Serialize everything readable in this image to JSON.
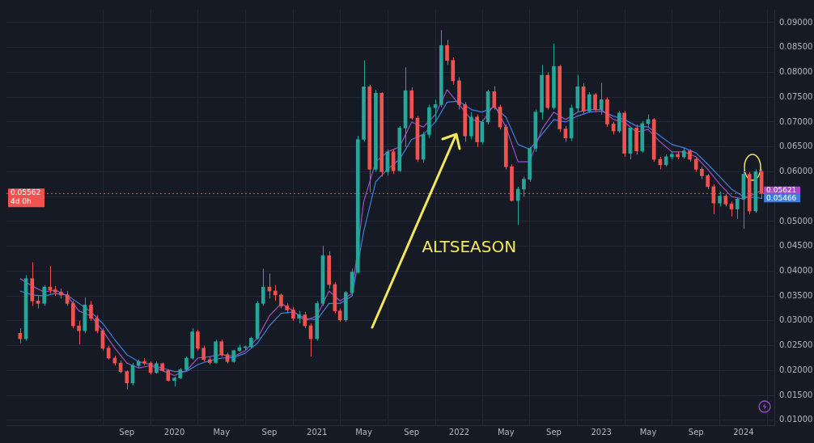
{
  "chart_data": {
    "type": "candlestick",
    "x": [
      "2018-12-01",
      "2018-12-16",
      "2019-01-01",
      "2019-01-16",
      "2019-02-01",
      "2019-02-16",
      "2019-03-01",
      "2019-03-16",
      "2019-04-01",
      "2019-04-16",
      "2019-05-01",
      "2019-05-16",
      "2019-06-01",
      "2019-06-16",
      "2019-07-01",
      "2019-07-16",
      "2019-08-01",
      "2019-08-16",
      "2019-09-01",
      "2019-09-16",
      "2019-10-01",
      "2019-10-16",
      "2019-11-01",
      "2019-11-16",
      "2019-12-01",
      "2019-12-16",
      "2020-01-01",
      "2020-01-16",
      "2020-02-01",
      "2020-02-16",
      "2020-03-01",
      "2020-03-16",
      "2020-04-01",
      "2020-04-16",
      "2020-05-01",
      "2020-05-16",
      "2020-06-01",
      "2020-06-16",
      "2020-07-01",
      "2020-07-16",
      "2020-08-01",
      "2020-08-16",
      "2020-09-01",
      "2020-09-16",
      "2020-10-01",
      "2020-10-16",
      "2020-11-01",
      "2020-11-16",
      "2020-12-01",
      "2020-12-16",
      "2021-01-01",
      "2021-01-16",
      "2021-02-01",
      "2021-02-16",
      "2021-03-01",
      "2021-03-16",
      "2021-04-01",
      "2021-04-16",
      "2021-05-01",
      "2021-05-16",
      "2021-06-01",
      "2021-06-16",
      "2021-07-01",
      "2021-07-16",
      "2021-08-01",
      "2021-08-16",
      "2021-09-01",
      "2021-09-16",
      "2021-10-01",
      "2021-10-16",
      "2021-11-01",
      "2021-11-16",
      "2021-12-01",
      "2021-12-16",
      "2022-01-01",
      "2022-01-16",
      "2022-02-01",
      "2022-02-16",
      "2022-03-01",
      "2022-03-16",
      "2022-04-01",
      "2022-04-16",
      "2022-05-01",
      "2022-05-16",
      "2022-06-01",
      "2022-06-16",
      "2022-07-01",
      "2022-07-16",
      "2022-08-01",
      "2022-08-16",
      "2022-09-01",
      "2022-09-16",
      "2022-10-01",
      "2022-10-16",
      "2022-11-01",
      "2022-11-16",
      "2022-12-01",
      "2022-12-16",
      "2023-01-01",
      "2023-01-16",
      "2023-02-01",
      "2023-02-16",
      "2023-03-01",
      "2023-03-16",
      "2023-04-01",
      "2023-04-16",
      "2023-05-01",
      "2023-05-16",
      "2023-06-01",
      "2023-06-16",
      "2023-07-01",
      "2023-07-16",
      "2023-08-01",
      "2023-08-16",
      "2023-09-01",
      "2023-09-16",
      "2023-10-01",
      "2023-10-16",
      "2023-11-01",
      "2023-11-16",
      "2023-12-01",
      "2023-12-16",
      "2024-01-01",
      "2024-01-16",
      "2024-02-01",
      "2024-02-16"
    ],
    "ohlc": [
      [
        0.0275,
        0.0285,
        0.0255,
        0.0264
      ],
      [
        0.0264,
        0.0392,
        0.026,
        0.0385
      ],
      [
        0.0385,
        0.0418,
        0.033,
        0.034
      ],
      [
        0.034,
        0.035,
        0.0325,
        0.0335
      ],
      [
        0.0335,
        0.0372,
        0.033,
        0.0368
      ],
      [
        0.0368,
        0.041,
        0.0355,
        0.0362
      ],
      [
        0.0362,
        0.037,
        0.035,
        0.0358
      ],
      [
        0.0358,
        0.0365,
        0.0345,
        0.0352
      ],
      [
        0.0352,
        0.036,
        0.033,
        0.0335
      ],
      [
        0.0335,
        0.034,
        0.0285,
        0.029
      ],
      [
        0.029,
        0.03,
        0.0252,
        0.028
      ],
      [
        0.028,
        0.0347,
        0.0275,
        0.0332
      ],
      [
        0.0332,
        0.034,
        0.03,
        0.0305
      ],
      [
        0.0305,
        0.0312,
        0.0275,
        0.028
      ],
      [
        0.028,
        0.0285,
        0.024,
        0.0245
      ],
      [
        0.0245,
        0.025,
        0.0222,
        0.0225
      ],
      [
        0.0225,
        0.023,
        0.021,
        0.0215
      ],
      [
        0.0215,
        0.022,
        0.0195,
        0.0198
      ],
      [
        0.0198,
        0.02,
        0.0162,
        0.0175
      ],
      [
        0.0175,
        0.0215,
        0.017,
        0.021
      ],
      [
        0.021,
        0.0222,
        0.0205,
        0.0218
      ],
      [
        0.0218,
        0.0225,
        0.021,
        0.0215
      ],
      [
        0.0215,
        0.0218,
        0.0192,
        0.0196
      ],
      [
        0.0196,
        0.0218,
        0.0194,
        0.0214
      ],
      [
        0.0214,
        0.0216,
        0.0198,
        0.02
      ],
      [
        0.02,
        0.0202,
        0.0178,
        0.018
      ],
      [
        0.018,
        0.0188,
        0.0168,
        0.0185
      ],
      [
        0.0185,
        0.0205,
        0.0183,
        0.0202
      ],
      [
        0.0202,
        0.0228,
        0.02,
        0.0225
      ],
      [
        0.0225,
        0.0285,
        0.0222,
        0.0278
      ],
      [
        0.0278,
        0.0282,
        0.024,
        0.0245
      ],
      [
        0.0245,
        0.025,
        0.0218,
        0.0222
      ],
      [
        0.0222,
        0.0228,
        0.0212,
        0.0216
      ],
      [
        0.0216,
        0.0262,
        0.0214,
        0.0258
      ],
      [
        0.0258,
        0.0262,
        0.0228,
        0.0232
      ],
      [
        0.0232,
        0.0236,
        0.0214,
        0.0218
      ],
      [
        0.0218,
        0.0242,
        0.0216,
        0.024
      ],
      [
        0.024,
        0.0252,
        0.0238,
        0.0246
      ],
      [
        0.0246,
        0.025,
        0.024,
        0.0248
      ],
      [
        0.0248,
        0.0268,
        0.0246,
        0.0265
      ],
      [
        0.0265,
        0.034,
        0.0262,
        0.0335
      ],
      [
        0.0335,
        0.0405,
        0.033,
        0.0368
      ],
      [
        0.0368,
        0.0395,
        0.0345,
        0.036
      ],
      [
        0.036,
        0.0372,
        0.034,
        0.0352
      ],
      [
        0.0352,
        0.0355,
        0.0325,
        0.033
      ],
      [
        0.033,
        0.0335,
        0.0315,
        0.0322
      ],
      [
        0.0322,
        0.0328,
        0.03,
        0.0305
      ],
      [
        0.0305,
        0.032,
        0.0295,
        0.0312
      ],
      [
        0.0312,
        0.0318,
        0.0285,
        0.029
      ],
      [
        0.029,
        0.0295,
        0.0228,
        0.0264
      ],
      [
        0.0264,
        0.034,
        0.026,
        0.0335
      ],
      [
        0.0335,
        0.0451,
        0.033,
        0.0431
      ],
      [
        0.0431,
        0.044,
        0.0365,
        0.0373
      ],
      [
        0.0373,
        0.0378,
        0.0315,
        0.032
      ],
      [
        0.032,
        0.0325,
        0.0298,
        0.0302
      ],
      [
        0.0302,
        0.036,
        0.0298,
        0.0357
      ],
      [
        0.0357,
        0.0405,
        0.035,
        0.0398
      ],
      [
        0.0398,
        0.0672,
        0.0395,
        0.0665
      ],
      [
        0.0665,
        0.0824,
        0.066,
        0.0771
      ],
      [
        0.0771,
        0.0775,
        0.0559,
        0.0605
      ],
      [
        0.0605,
        0.0765,
        0.06,
        0.0758
      ],
      [
        0.0758,
        0.076,
        0.059,
        0.06
      ],
      [
        0.06,
        0.0645,
        0.0592,
        0.064
      ],
      [
        0.064,
        0.0645,
        0.0595,
        0.0602
      ],
      [
        0.0602,
        0.0692,
        0.06,
        0.0688
      ],
      [
        0.0688,
        0.081,
        0.065,
        0.0763
      ],
      [
        0.0763,
        0.077,
        0.0705,
        0.0708
      ],
      [
        0.0708,
        0.0712,
        0.062,
        0.0625
      ],
      [
        0.0625,
        0.068,
        0.0618,
        0.0675
      ],
      [
        0.0675,
        0.0735,
        0.0668,
        0.0729
      ],
      [
        0.0729,
        0.0745,
        0.07,
        0.0735
      ],
      [
        0.0735,
        0.0885,
        0.073,
        0.0854
      ],
      [
        0.0854,
        0.0865,
        0.0815,
        0.0824
      ],
      [
        0.0824,
        0.083,
        0.0775,
        0.0783
      ],
      [
        0.0783,
        0.079,
        0.0725,
        0.0735
      ],
      [
        0.0735,
        0.074,
        0.066,
        0.0672
      ],
      [
        0.0672,
        0.072,
        0.0665,
        0.071
      ],
      [
        0.071,
        0.0715,
        0.065,
        0.066
      ],
      [
        0.066,
        0.0705,
        0.0655,
        0.07
      ],
      [
        0.07,
        0.0765,
        0.0695,
        0.0761
      ],
      [
        0.0761,
        0.0772,
        0.0725,
        0.073
      ],
      [
        0.073,
        0.0735,
        0.0685,
        0.069
      ],
      [
        0.069,
        0.0695,
        0.0605,
        0.061
      ],
      [
        0.061,
        0.0615,
        0.054,
        0.0542
      ],
      [
        0.0542,
        0.057,
        0.0493,
        0.0565
      ],
      [
        0.0565,
        0.059,
        0.055,
        0.0585
      ],
      [
        0.0585,
        0.065,
        0.058,
        0.0647
      ],
      [
        0.0647,
        0.0725,
        0.064,
        0.072
      ],
      [
        0.072,
        0.0815,
        0.0705,
        0.0794
      ],
      [
        0.0794,
        0.08,
        0.0725,
        0.0729
      ],
      [
        0.0729,
        0.0858,
        0.0725,
        0.0812
      ],
      [
        0.0812,
        0.0815,
        0.068,
        0.0686
      ],
      [
        0.0686,
        0.0692,
        0.066,
        0.0668
      ],
      [
        0.0668,
        0.0735,
        0.0662,
        0.0728
      ],
      [
        0.0728,
        0.0795,
        0.072,
        0.0771
      ],
      [
        0.0771,
        0.0778,
        0.0715,
        0.0722
      ],
      [
        0.0722,
        0.076,
        0.0718,
        0.0755
      ],
      [
        0.0755,
        0.0758,
        0.072,
        0.0725
      ],
      [
        0.0725,
        0.0779,
        0.0715,
        0.0745
      ],
      [
        0.0745,
        0.075,
        0.069,
        0.0696
      ],
      [
        0.0696,
        0.07,
        0.0675,
        0.0682
      ],
      [
        0.0682,
        0.0722,
        0.0678,
        0.0718
      ],
      [
        0.0718,
        0.0722,
        0.063,
        0.0637
      ],
      [
        0.0637,
        0.069,
        0.0625,
        0.0688
      ],
      [
        0.0688,
        0.0695,
        0.0635,
        0.0642
      ],
      [
        0.0642,
        0.0702,
        0.0638,
        0.0697
      ],
      [
        0.0697,
        0.0715,
        0.069,
        0.0705
      ],
      [
        0.0705,
        0.0708,
        0.062,
        0.0625
      ],
      [
        0.0625,
        0.063,
        0.0605,
        0.0614
      ],
      [
        0.0614,
        0.0635,
        0.061,
        0.063
      ],
      [
        0.063,
        0.064,
        0.0625,
        0.0635
      ],
      [
        0.0635,
        0.064,
        0.0625,
        0.063
      ],
      [
        0.063,
        0.0648,
        0.0626,
        0.0642
      ],
      [
        0.0642,
        0.0645,
        0.062,
        0.0625
      ],
      [
        0.0625,
        0.0628,
        0.06,
        0.0605
      ],
      [
        0.0605,
        0.061,
        0.0585,
        0.0592
      ],
      [
        0.0592,
        0.0595,
        0.0565,
        0.057
      ],
      [
        0.057,
        0.0575,
        0.0515,
        0.0537
      ],
      [
        0.0537,
        0.056,
        0.053,
        0.0551
      ],
      [
        0.0551,
        0.0555,
        0.053,
        0.0535
      ],
      [
        0.0535,
        0.054,
        0.051,
        0.0525
      ],
      [
        0.0525,
        0.0548,
        0.0505,
        0.0545
      ],
      [
        0.0545,
        0.0608,
        0.0485,
        0.0595
      ],
      [
        0.0595,
        0.06,
        0.0515,
        0.0521
      ],
      [
        0.0521,
        0.0605,
        0.0518,
        0.06
      ],
      [
        0.06,
        0.0605,
        0.0545,
        0.05562
      ]
    ],
    "series": [
      {
        "type": "line",
        "color": "#a24cc4",
        "x": [
          "2018-12",
          "2019-01",
          "2019-02",
          "2019-03",
          "2019-04",
          "2019-05",
          "2019-06",
          "2019-07",
          "2019-08",
          "2019-09",
          "2019-10",
          "2019-11",
          "2019-12",
          "2020-01",
          "2020-02",
          "2020-03",
          "2020-04",
          "2020-05",
          "2020-06",
          "2020-07",
          "2020-08",
          "2020-09",
          "2020-10",
          "2020-11",
          "2020-12",
          "2021-01",
          "2021-02",
          "2021-03",
          "2021-04",
          "2021-05",
          "2021-06",
          "2021-07",
          "2021-08",
          "2021-09",
          "2021-10",
          "2021-11",
          "2021-12",
          "2022-01",
          "2022-02",
          "2022-03",
          "2022-04",
          "2022-05",
          "2022-06",
          "2022-07",
          "2022-08",
          "2022-09",
          "2022-10",
          "2022-11",
          "2022-12",
          "2023-01",
          "2023-02",
          "2023-03",
          "2023-04",
          "2023-05",
          "2023-06",
          "2023-07",
          "2023-08",
          "2023-09",
          "2023-10",
          "2023-11",
          "2023-12",
          "2024-01",
          "2024-02-16"
        ],
        "values": [
          0.0385,
          0.037,
          0.0358,
          0.0362,
          0.035,
          0.032,
          0.031,
          0.028,
          0.0245,
          0.0215,
          0.0205,
          0.021,
          0.02,
          0.019,
          0.02,
          0.0225,
          0.0228,
          0.0232,
          0.0228,
          0.024,
          0.0265,
          0.031,
          0.0335,
          0.032,
          0.03,
          0.031,
          0.036,
          0.034,
          0.0355,
          0.054,
          0.062,
          0.064,
          0.065,
          0.07,
          0.069,
          0.0715,
          0.0765,
          0.0735,
          0.0705,
          0.07,
          0.0735,
          0.069,
          0.062,
          0.062,
          0.0685,
          0.072,
          0.0705,
          0.072,
          0.0725,
          0.0725,
          0.0705,
          0.07,
          0.068,
          0.0685,
          0.066,
          0.064,
          0.064,
          0.063,
          0.0605,
          0.0575,
          0.055,
          0.0545,
          0.05621
        ],
        "value_labels": [
          null,
          null,
          null,
          null,
          null,
          null,
          null,
          null,
          null,
          null,
          null,
          null,
          null,
          null,
          null,
          null,
          null,
          null,
          null,
          null,
          null,
          null,
          null,
          null,
          null,
          null,
          null,
          null,
          null,
          null,
          null,
          null,
          null,
          null,
          null,
          null,
          null,
          null,
          null,
          null,
          null,
          null,
          null,
          null,
          null,
          null,
          null,
          null,
          null,
          null,
          null,
          null,
          null,
          null,
          null,
          null,
          null,
          null,
          null,
          null,
          null,
          null,
          "0.05621"
        ]
      },
      {
        "type": "line",
        "color": "#3d7fe0",
        "x": [
          "2018-12",
          "2019-01",
          "2019-02",
          "2019-03",
          "2019-04",
          "2019-05",
          "2019-06",
          "2019-07",
          "2019-08",
          "2019-09",
          "2019-10",
          "2019-11",
          "2019-12",
          "2020-01",
          "2020-02",
          "2020-03",
          "2020-04",
          "2020-05",
          "2020-06",
          "2020-07",
          "2020-08",
          "2020-09",
          "2020-10",
          "2020-11",
          "2020-12",
          "2021-01",
          "2021-02",
          "2021-03",
          "2021-04",
          "2021-05",
          "2021-06",
          "2021-07",
          "2021-08",
          "2021-09",
          "2021-10",
          "2021-11",
          "2021-12",
          "2022-01",
          "2022-02",
          "2022-03",
          "2022-04",
          "2022-05",
          "2022-06",
          "2022-07",
          "2022-08",
          "2022-09",
          "2022-10",
          "2022-11",
          "2022-12",
          "2023-01",
          "2023-02",
          "2023-03",
          "2023-04",
          "2023-05",
          "2023-06",
          "2023-07",
          "2023-08",
          "2023-09",
          "2023-10",
          "2023-11",
          "2023-12",
          "2024-01",
          "2024-02-16"
        ],
        "values": [
          0.036,
          0.0352,
          0.035,
          0.0355,
          0.0352,
          0.0335,
          0.0318,
          0.0295,
          0.0262,
          0.0232,
          0.0218,
          0.0212,
          0.0205,
          0.0198,
          0.0198,
          0.0212,
          0.022,
          0.0225,
          0.0226,
          0.0235,
          0.0255,
          0.029,
          0.0315,
          0.0318,
          0.0305,
          0.0302,
          0.0335,
          0.0335,
          0.035,
          0.048,
          0.058,
          0.0605,
          0.0625,
          0.0665,
          0.0675,
          0.07,
          0.074,
          0.0742,
          0.0725,
          0.072,
          0.073,
          0.071,
          0.0655,
          0.0645,
          0.0675,
          0.0705,
          0.07,
          0.0712,
          0.072,
          0.0722,
          0.0712,
          0.0705,
          0.0692,
          0.069,
          0.0672,
          0.0655,
          0.0648,
          0.0638,
          0.0615,
          0.059,
          0.0565,
          0.055,
          0.05466
        ],
        "value_labels": [
          null,
          null,
          null,
          null,
          null,
          null,
          null,
          null,
          null,
          null,
          null,
          null,
          null,
          null,
          null,
          null,
          null,
          null,
          null,
          null,
          null,
          null,
          null,
          null,
          null,
          null,
          null,
          null,
          null,
          null,
          null,
          null,
          null,
          null,
          null,
          null,
          null,
          null,
          null,
          null,
          null,
          null,
          null,
          null,
          null,
          null,
          null,
          null,
          null,
          null,
          null,
          null,
          null,
          null,
          null,
          null,
          null,
          null,
          null,
          null,
          null,
          null,
          "0.05466"
        ]
      }
    ],
    "xlim": [
      "2018-10-27",
      "2024-03-20"
    ],
    "xticks": [
      {
        "value": "2019-09",
        "label": "Sep"
      },
      {
        "value": "2020",
        "label": "2020"
      },
      {
        "value": "2020-05",
        "label": "May"
      },
      {
        "value": "2020-09",
        "label": "Sep"
      },
      {
        "value": "2021",
        "label": "2021"
      },
      {
        "value": "2021-05",
        "label": "May"
      },
      {
        "value": "2021-09",
        "label": "Sep"
      },
      {
        "value": "2022",
        "label": "2022"
      },
      {
        "value": "2022-05",
        "label": "May"
      },
      {
        "value": "2022-09",
        "label": "Sep"
      },
      {
        "value": "2023",
        "label": "2023"
      },
      {
        "value": "2023-05",
        "label": "May"
      },
      {
        "value": "2023-09",
        "label": "Sep"
      },
      {
        "value": "2024",
        "label": "2024"
      }
    ],
    "ylim": [
      0.009,
      0.0926
    ],
    "yticks": [
      {
        "value": 0.01,
        "label": "0.01000"
      },
      {
        "value": 0.015,
        "label": "0.01500"
      },
      {
        "value": 0.02,
        "label": "0.02000"
      },
      {
        "value": 0.025,
        "label": "0.02500"
      },
      {
        "value": 0.03,
        "label": "0.03000"
      },
      {
        "value": 0.035,
        "label": "0.03500"
      },
      {
        "value": 0.04,
        "label": "0.04000"
      },
      {
        "value": 0.045,
        "label": "0.04500"
      },
      {
        "value": 0.05,
        "label": "0.05000"
      },
      {
        "value": 0.055,
        "label": null
      },
      {
        "value": 0.06,
        "label": "0.06000"
      },
      {
        "value": 0.065,
        "label": "0.06500"
      },
      {
        "value": 0.07,
        "label": "0.07000"
      },
      {
        "value": 0.075,
        "label": "0.07500"
      },
      {
        "value": 0.08,
        "label": "0.08000"
      },
      {
        "value": 0.085,
        "label": "0.08500"
      },
      {
        "value": 0.09,
        "label": "0.09000"
      }
    ],
    "ref_lines": [
      {
        "axis": "y",
        "value": 0.05562,
        "label": "0.05562",
        "color": "#ef5350",
        "line_style": "dotted"
      }
    ],
    "annotations": [
      "ALTSEASON",
      "4d 0h"
    ],
    "grid": true,
    "legend": false
  }
}
